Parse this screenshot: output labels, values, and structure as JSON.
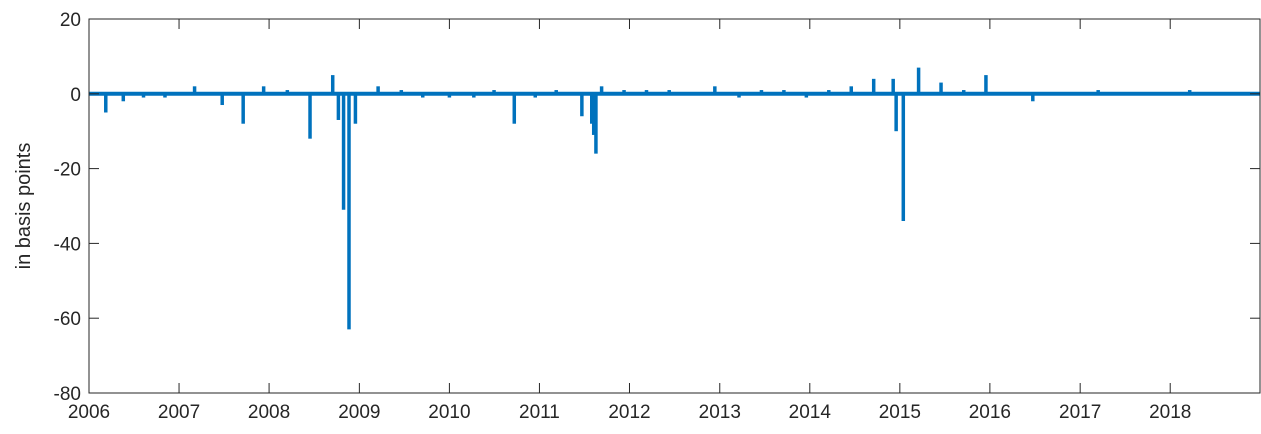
{
  "chart_data": {
    "type": "bar",
    "title": "",
    "xlabel": "",
    "ylabel": "in basis points",
    "xlim": [
      "2006-01-01",
      "2018-12-31"
    ],
    "ylim": [
      -80,
      20
    ],
    "x_tick_labels": [
      "2006",
      "2007",
      "2008",
      "2009",
      "2010",
      "2011",
      "2012",
      "2013",
      "2014",
      "2015",
      "2016",
      "2017",
      "2018"
    ],
    "y_tick_labels": [
      "20",
      "0",
      "-20",
      "-40",
      "-60",
      "-80"
    ],
    "y_ticks": [
      20,
      0,
      -20,
      -40,
      -60,
      -80
    ],
    "grid": false,
    "baseline_value": 0,
    "series_color": "#0072BD",
    "points": [
      {
        "x": "2006-03-10",
        "y": -5
      },
      {
        "x": "2006-05-20",
        "y": -2
      },
      {
        "x": "2006-08-10",
        "y": -1
      },
      {
        "x": "2006-11-05",
        "y": -1
      },
      {
        "x": "2007-03-05",
        "y": 2
      },
      {
        "x": "2007-06-25",
        "y": -3
      },
      {
        "x": "2007-09-18",
        "y": -8
      },
      {
        "x": "2007-12-10",
        "y": 2
      },
      {
        "x": "2008-03-15",
        "y": 1
      },
      {
        "x": "2008-06-15",
        "y": -12
      },
      {
        "x": "2008-09-15",
        "y": 5
      },
      {
        "x": "2008-10-08",
        "y": -7
      },
      {
        "x": "2008-10-29",
        "y": -31
      },
      {
        "x": "2008-11-20",
        "y": -63
      },
      {
        "x": "2008-12-16",
        "y": -8
      },
      {
        "x": "2009-03-18",
        "y": 2
      },
      {
        "x": "2009-06-20",
        "y": 1
      },
      {
        "x": "2009-09-15",
        "y": -1
      },
      {
        "x": "2010-01-01",
        "y": -1
      },
      {
        "x": "2010-04-10",
        "y": -1
      },
      {
        "x": "2010-07-01",
        "y": 1
      },
      {
        "x": "2010-09-21",
        "y": -8
      },
      {
        "x": "2010-12-15",
        "y": -1
      },
      {
        "x": "2011-03-10",
        "y": 1
      },
      {
        "x": "2011-06-22",
        "y": -6
      },
      {
        "x": "2011-08-01",
        "y": -8
      },
      {
        "x": "2011-08-09",
        "y": -11
      },
      {
        "x": "2011-08-18",
        "y": -16
      },
      {
        "x": "2011-09-10",
        "y": 2
      },
      {
        "x": "2011-12-10",
        "y": 1
      },
      {
        "x": "2012-03-10",
        "y": 1
      },
      {
        "x": "2012-06-10",
        "y": 1
      },
      {
        "x": "2012-12-12",
        "y": 2
      },
      {
        "x": "2013-03-20",
        "y": -1
      },
      {
        "x": "2013-06-19",
        "y": 1
      },
      {
        "x": "2013-09-18",
        "y": 1
      },
      {
        "x": "2013-12-18",
        "y": -1
      },
      {
        "x": "2014-03-19",
        "y": 1
      },
      {
        "x": "2014-06-18",
        "y": 2
      },
      {
        "x": "2014-09-17",
        "y": 4
      },
      {
        "x": "2014-12-05",
        "y": 4
      },
      {
        "x": "2014-12-17",
        "y": -10
      },
      {
        "x": "2015-01-15",
        "y": -34
      },
      {
        "x": "2015-03-18",
        "y": 7
      },
      {
        "x": "2015-06-17",
        "y": 3
      },
      {
        "x": "2015-09-17",
        "y": 1
      },
      {
        "x": "2015-12-16",
        "y": 5
      },
      {
        "x": "2016-06-23",
        "y": -2
      },
      {
        "x": "2017-03-15",
        "y": 1
      },
      {
        "x": "2018-03-21",
        "y": 1
      }
    ]
  }
}
